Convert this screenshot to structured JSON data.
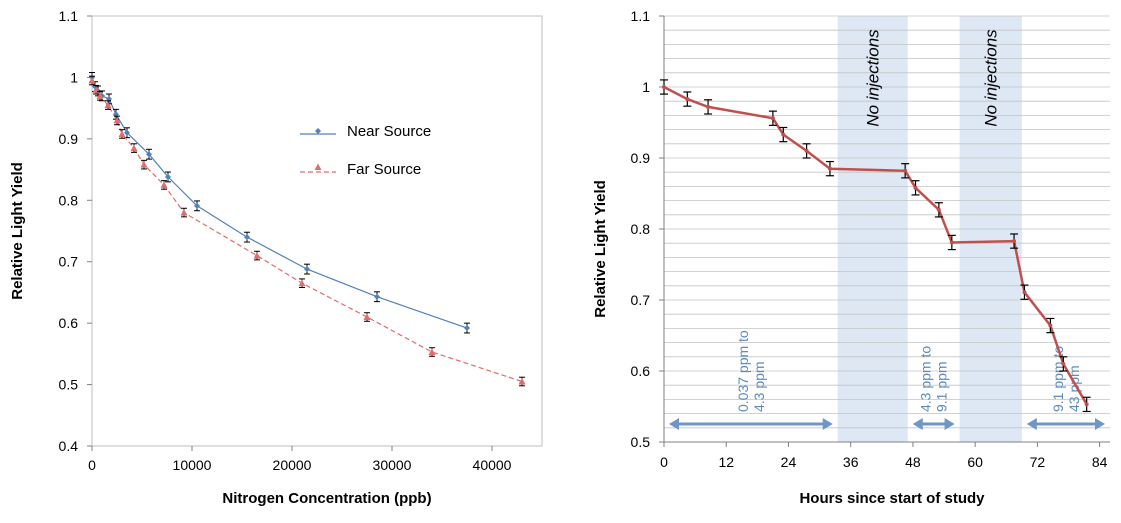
{
  "chart_data": [
    {
      "type": "scatter",
      "xlabel": "Nitrogen Concentration (ppb)",
      "ylabel": "Relative Light Yield",
      "xlim": [
        0,
        45000
      ],
      "ylim": [
        0.4,
        1.1
      ],
      "x_ticks": [
        "0",
        "10000",
        "20000",
        "30000",
        "40000"
      ],
      "y_ticks": [
        "0.4",
        "0.5",
        "0.6",
        "0.7",
        "0.8",
        "0.9",
        "1",
        "1.1"
      ],
      "grid": false,
      "legend_placement": "right",
      "series": [
        {
          "name": "Near Source",
          "color": "#4f81bd",
          "marker": "diamond",
          "fit_line": "solid",
          "points": [
            [
              0,
              1.0
            ],
            [
              300,
              0.985
            ],
            [
              600,
              0.978
            ],
            [
              1000,
              0.97
            ],
            [
              1700,
              0.965
            ],
            [
              2400,
              0.94
            ],
            [
              3500,
              0.91
            ],
            [
              5700,
              0.875
            ],
            [
              7600,
              0.838
            ],
            [
              10500,
              0.791
            ],
            [
              15500,
              0.74
            ],
            [
              21500,
              0.688
            ],
            [
              28500,
              0.643
            ],
            [
              37500,
              0.592
            ]
          ],
          "error": 0.008
        },
        {
          "name": "Far Source",
          "color": "#e06c6c",
          "marker": "triangle",
          "fit_line": "dashed",
          "points": [
            [
              0,
              0.995
            ],
            [
              400,
              0.98
            ],
            [
              800,
              0.97
            ],
            [
              1600,
              0.955
            ],
            [
              2500,
              0.93
            ],
            [
              3000,
              0.908
            ],
            [
              4200,
              0.885
            ],
            [
              5200,
              0.858
            ],
            [
              7200,
              0.825
            ],
            [
              9200,
              0.78
            ],
            [
              16500,
              0.71
            ],
            [
              21000,
              0.665
            ],
            [
              27500,
              0.61
            ],
            [
              34000,
              0.553
            ],
            [
              43000,
              0.505
            ]
          ],
          "error": 0.007
        }
      ]
    },
    {
      "type": "line",
      "xlabel": "Hours since start of study",
      "ylabel": "Relative Light Yield",
      "xlim": [
        0,
        86
      ],
      "ylim": [
        0.5,
        1.1
      ],
      "x_ticks": [
        "0",
        "12",
        "24",
        "36",
        "48",
        "60",
        "72",
        "84"
      ],
      "y_ticks": [
        "0.5",
        "0.6",
        "0.7",
        "0.8",
        "0.9",
        "1",
        "1.1"
      ],
      "grid": true,
      "color": "#c0504d",
      "points": [
        [
          0,
          1.0
        ],
        [
          4.5,
          0.983
        ],
        [
          8.5,
          0.972
        ],
        [
          21,
          0.956
        ],
        [
          23,
          0.933
        ],
        [
          27.5,
          0.91
        ],
        [
          32,
          0.885
        ],
        [
          46.5,
          0.882
        ],
        [
          48.5,
          0.858
        ],
        [
          53,
          0.827
        ],
        [
          55.5,
          0.781
        ],
        [
          67.5,
          0.783
        ],
        [
          69.5,
          0.711
        ],
        [
          74.5,
          0.664
        ],
        [
          77,
          0.61
        ],
        [
          81.5,
          0.553
        ]
      ],
      "error": 0.01,
      "shaded_regions": [
        {
          "from": 33.5,
          "to": 47,
          "label": "No injections"
        },
        {
          "from": 57,
          "to": 69,
          "label": "No injections"
        }
      ],
      "ranges": [
        {
          "from": 0,
          "to": 33.5,
          "label_line1": "0.037 ppm to",
          "label_line2": "4.3 ppm"
        },
        {
          "from": 47,
          "to": 57,
          "label_line1": "4.3 ppm to",
          "label_line2": "9.1 ppm"
        },
        {
          "from": 69,
          "to": 86,
          "label_line1": "9.1 ppm  to",
          "label_line2": "43 ppm"
        }
      ]
    }
  ]
}
